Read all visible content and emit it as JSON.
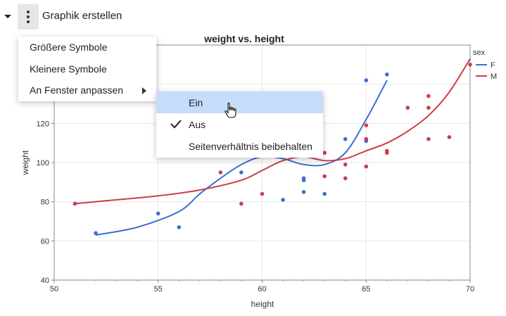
{
  "header": {
    "title": "Graphik erstellen",
    "collapse_icon": "triangle-down-icon",
    "menu_icon": "kebab-icon"
  },
  "menu": {
    "items": [
      {
        "label": "Größere Symbole"
      },
      {
        "label": "Kleinere Symbole"
      },
      {
        "label": "An Fenster anpassen",
        "has_submenu": true
      }
    ]
  },
  "submenu": {
    "items": [
      {
        "label": "Ein",
        "highlighted": true,
        "checked": false
      },
      {
        "label": "Aus",
        "highlighted": false,
        "checked": true
      },
      {
        "label": "Seitenverhältnis beibehalten",
        "highlighted": false,
        "checked": false
      }
    ]
  },
  "colors": {
    "F": "#3b6fd4",
    "M": "#cc3d4a",
    "highlight": "#c6dcfb"
  },
  "chart_data": {
    "type": "scatter",
    "title": "weight vs. height",
    "xlabel": "height",
    "ylabel": "weight",
    "xlim": [
      50,
      70
    ],
    "ylim": [
      40,
      160
    ],
    "xticks": [
      50,
      55,
      60,
      65,
      70
    ],
    "yticks": [
      40,
      60,
      80,
      100,
      120,
      140
    ],
    "legend": {
      "title": "sex",
      "position": "right",
      "entries": [
        "F",
        "M"
      ]
    },
    "series": [
      {
        "name": "F",
        "points": [
          [
            52,
            64
          ],
          [
            55,
            74
          ],
          [
            56,
            67
          ],
          [
            59,
            95
          ],
          [
            61,
            107
          ],
          [
            61,
            81
          ],
          [
            62,
            92
          ],
          [
            62,
            91
          ],
          [
            62,
            85
          ],
          [
            63,
            84
          ],
          [
            64,
            112
          ],
          [
            65,
            111
          ],
          [
            65,
            142
          ],
          [
            66,
            145
          ]
        ],
        "curve": [
          [
            52,
            63
          ],
          [
            54,
            67
          ],
          [
            56,
            75
          ],
          [
            57,
            84
          ],
          [
            58,
            92
          ],
          [
            59,
            99
          ],
          [
            60,
            103
          ],
          [
            61,
            102
          ],
          [
            62,
            99
          ],
          [
            63,
            99
          ],
          [
            64,
            105
          ],
          [
            65,
            122
          ],
          [
            66,
            142
          ]
        ]
      },
      {
        "name": "M",
        "points": [
          [
            51,
            79
          ],
          [
            58,
            95
          ],
          [
            59,
            79
          ],
          [
            60,
            84
          ],
          [
            62,
            104
          ],
          [
            63,
            105
          ],
          [
            63,
            93
          ],
          [
            64,
            99
          ],
          [
            64,
            92
          ],
          [
            65,
            119
          ],
          [
            65,
            112
          ],
          [
            65,
            98
          ],
          [
            66,
            106
          ],
          [
            66,
            105
          ],
          [
            67,
            128
          ],
          [
            68,
            134
          ],
          [
            68,
            128
          ],
          [
            68,
            112
          ],
          [
            69,
            113
          ],
          [
            70,
            150
          ]
        ],
        "curve": [
          [
            51,
            79
          ],
          [
            53,
            81
          ],
          [
            55,
            83
          ],
          [
            57,
            86
          ],
          [
            59,
            91
          ],
          [
            60,
            96
          ],
          [
            61,
            101
          ],
          [
            62,
            103
          ],
          [
            63,
            101
          ],
          [
            64,
            102
          ],
          [
            65,
            106
          ],
          [
            66,
            110
          ],
          [
            67,
            116
          ],
          [
            68,
            124
          ],
          [
            69,
            136
          ],
          [
            70,
            153
          ]
        ]
      }
    ]
  }
}
